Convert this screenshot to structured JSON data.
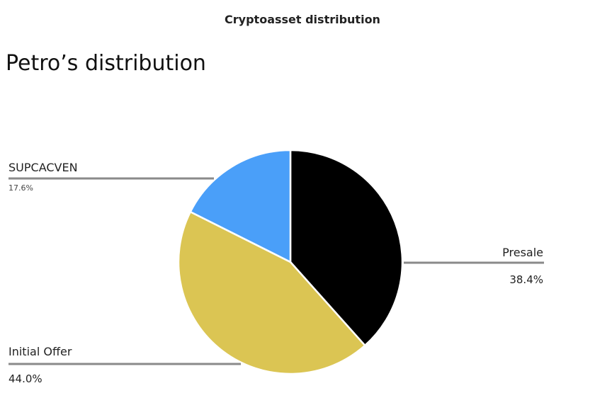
{
  "header": {
    "title": "Cryptoasset distribution"
  },
  "page_title": "Petro’s distribution",
  "chart_data": {
    "type": "pie",
    "title": "Petro’s distribution",
    "slices": [
      {
        "label": "Presale",
        "value": 38.4,
        "display": "38.4%",
        "color": "#000000"
      },
      {
        "label": "Initial Offer",
        "value": 44.0,
        "display": "44.0%",
        "color": "#dbc553"
      },
      {
        "label": "SUPCACVEN",
        "value": 17.6,
        "display": "17.6%",
        "color": "#4a9ff9"
      }
    ],
    "start_angle_deg": 0,
    "direction": "clockwise",
    "leader_color": "#8a8a8a"
  }
}
